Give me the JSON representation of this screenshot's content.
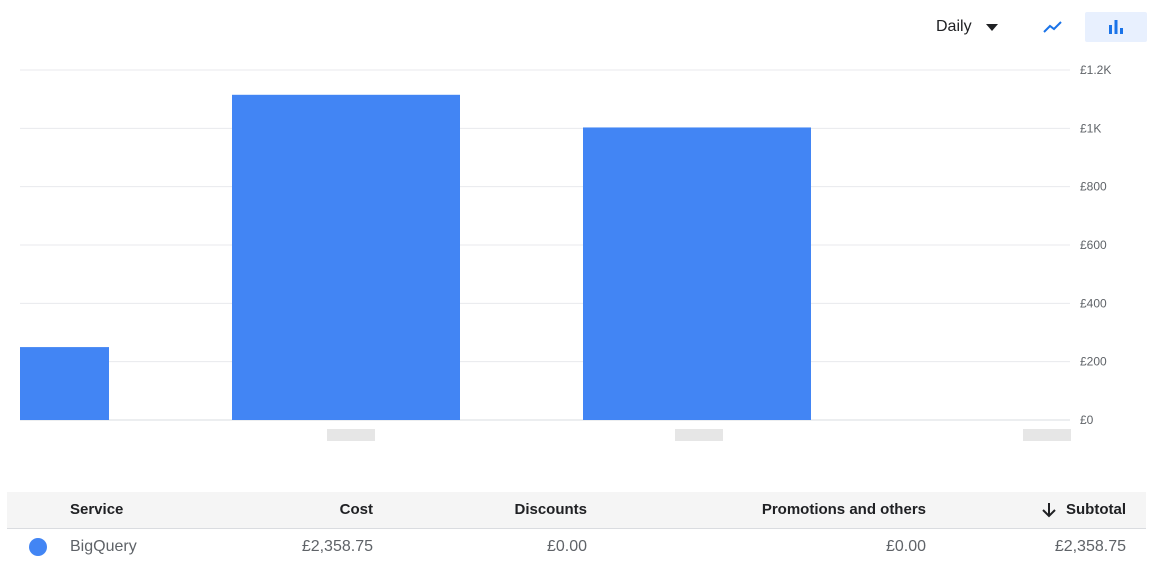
{
  "toolbar": {
    "granularity_label": "Daily",
    "line_view_icon": "line-chart-icon",
    "bar_view_icon": "bar-chart-icon",
    "active_view": "bar"
  },
  "colors": {
    "bar": "#4285f4",
    "grid": "#e8eaed",
    "axis": "#dadce0",
    "icon_blue": "#1a73e8"
  },
  "chart_data": {
    "type": "bar",
    "categories": [
      "",
      "",
      "",
      ""
    ],
    "values": [
      250,
      1115,
      1003,
      0
    ],
    "ylim": [
      0,
      1200
    ],
    "ytick_labels": [
      "£0",
      "£200",
      "£400",
      "£600",
      "£800",
      "£1K",
      "£1.2K"
    ],
    "grid": true,
    "yaxis_side": "right",
    "series": [
      {
        "name": "BigQuery",
        "values": [
          250,
          1115,
          1003,
          0
        ]
      }
    ]
  },
  "table": {
    "headers": {
      "service": "Service",
      "cost": "Cost",
      "discounts": "Discounts",
      "promotions": "Promotions and others",
      "subtotal": "Subtotal"
    },
    "sort_icon": "arrow-down-icon",
    "rows": [
      {
        "service": "BigQuery",
        "cost": "£2,358.75",
        "discounts": "£0.00",
        "promotions": "£0.00",
        "subtotal": "£2,358.75"
      }
    ]
  }
}
